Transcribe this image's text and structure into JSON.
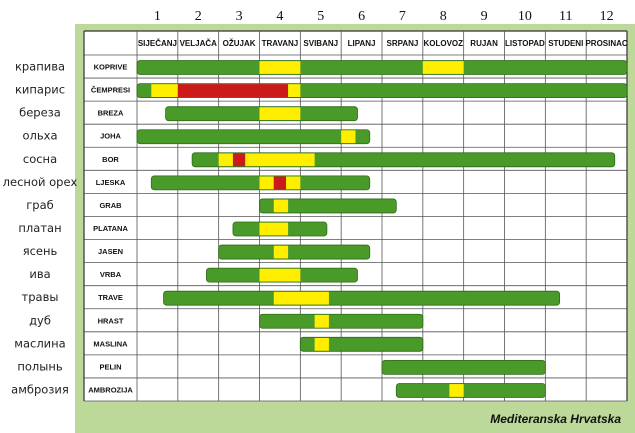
{
  "chart_data": {
    "type": "gantt",
    "caption": "Mediteranska Hrvatska",
    "month_numbers": [
      "1",
      "2",
      "3",
      "4",
      "5",
      "6",
      "7",
      "8",
      "9",
      "10",
      "11",
      "12"
    ],
    "months": [
      "SIJEČANJ",
      "VELJAČA",
      "OŽUJAK",
      "TRAVANJ",
      "SVIBANJ",
      "LIPANJ",
      "SRPANJ",
      "KOLOVOZ",
      "RUJAN",
      "LISTOPAD",
      "STUDENI",
      "PROSINAC"
    ],
    "x_unit": "months (0 = start of January, 12 = end of December)",
    "level_colors": {
      "green": "#4a9a2a",
      "yellow": "#ffee00",
      "red": "#cc1a1a"
    },
    "rows": [
      {
        "ru": "крапива",
        "hr": "KOPRIVE",
        "start": 0.0,
        "end": 12.0,
        "segments": [
          [
            3.0,
            4.0,
            "yellow"
          ],
          [
            7.0,
            8.0,
            "yellow"
          ]
        ]
      },
      {
        "ru": "кипарис",
        "hr": "ČEMPRESI",
        "start": 0.0,
        "end": 12.0,
        "segments": [
          [
            0.35,
            1.0,
            "yellow"
          ],
          [
            1.0,
            3.7,
            "red"
          ],
          [
            3.7,
            4.0,
            "yellow"
          ]
        ]
      },
      {
        "ru": "береза",
        "hr": "BREZA",
        "start": 0.7,
        "end": 5.4,
        "segments": [
          [
            3.0,
            4.0,
            "yellow"
          ]
        ]
      },
      {
        "ru": "ольха",
        "hr": "JOHA",
        "start": 0.0,
        "end": 5.7,
        "segments": [
          [
            5.0,
            5.35,
            "yellow"
          ]
        ]
      },
      {
        "ru": "сосна",
        "hr": "BOR",
        "start": 1.35,
        "end": 11.7,
        "segments": [
          [
            2.0,
            2.35,
            "yellow"
          ],
          [
            2.35,
            2.65,
            "red"
          ],
          [
            2.65,
            4.35,
            "yellow"
          ]
        ]
      },
      {
        "ru": "лесной орех",
        "hr": "LJESKA",
        "start": 0.35,
        "end": 5.7,
        "segments": [
          [
            3.0,
            3.35,
            "yellow"
          ],
          [
            3.35,
            3.65,
            "red"
          ],
          [
            3.65,
            4.0,
            "yellow"
          ]
        ]
      },
      {
        "ru": "граб",
        "hr": "GRAB",
        "start": 3.0,
        "end": 6.35,
        "segments": [
          [
            3.35,
            3.7,
            "yellow"
          ]
        ]
      },
      {
        "ru": "платан",
        "hr": "PLATANA",
        "start": 2.35,
        "end": 4.65,
        "segments": [
          [
            3.0,
            3.7,
            "yellow"
          ]
        ]
      },
      {
        "ru": "ясень",
        "hr": "JASEN",
        "start": 2.0,
        "end": 5.7,
        "segments": [
          [
            3.35,
            3.7,
            "yellow"
          ]
        ]
      },
      {
        "ru": "ива",
        "hr": "VRBA",
        "start": 1.7,
        "end": 5.4,
        "segments": [
          [
            3.0,
            4.0,
            "yellow"
          ]
        ]
      },
      {
        "ru": "травы",
        "hr": "TRAVE",
        "start": 0.65,
        "end": 10.35,
        "segments": [
          [
            3.35,
            4.7,
            "yellow"
          ]
        ]
      },
      {
        "ru": "дуб",
        "hr": "HRAST",
        "start": 3.0,
        "end": 7.0,
        "segments": [
          [
            4.35,
            4.7,
            "yellow"
          ]
        ]
      },
      {
        "ru": "маслина",
        "hr": "MASLINA",
        "start": 4.0,
        "end": 7.0,
        "segments": [
          [
            4.35,
            4.7,
            "yellow"
          ]
        ]
      },
      {
        "ru": "полынь",
        "hr": "PELIN",
        "start": 6.0,
        "end": 10.0,
        "segments": []
      },
      {
        "ru": "амброзия",
        "hr": "AMBROZIJA",
        "start": 6.35,
        "end": 10.0,
        "segments": [
          [
            7.65,
            8.0,
            "yellow"
          ]
        ]
      }
    ]
  }
}
